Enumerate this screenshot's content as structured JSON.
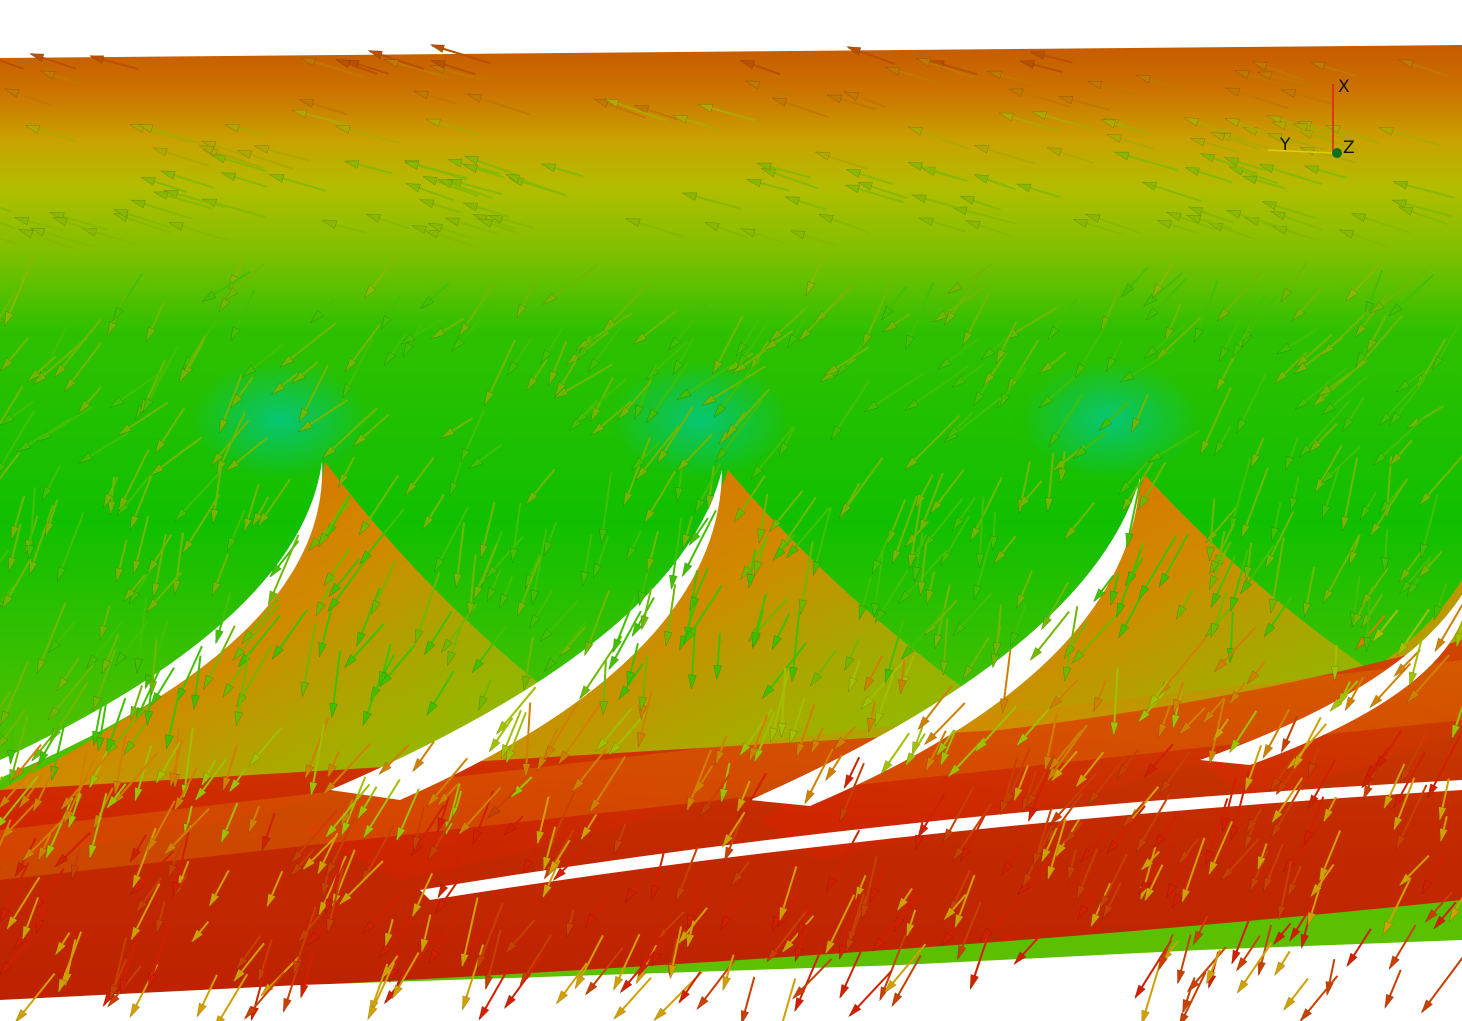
{
  "axes_triad": {
    "labels": {
      "x": "X",
      "y": "Y",
      "z": "Z"
    }
  }
}
